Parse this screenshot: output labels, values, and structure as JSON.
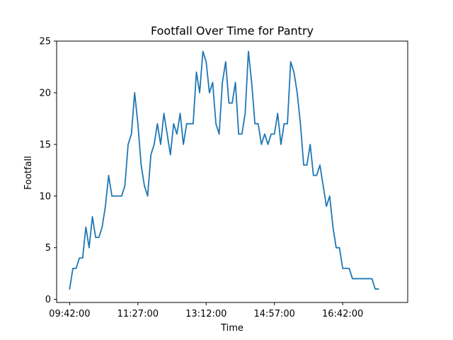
{
  "chart_data": {
    "type": "line",
    "title": "Footfall Over Time for Pantry",
    "xlabel": "Time",
    "ylabel": "Footfall",
    "x_start": "09:42:00",
    "x_step_minutes": 5,
    "xlim": [
      -4,
      104
    ],
    "ylim": [
      -0.3,
      25
    ],
    "y_ticks": [
      0,
      5,
      10,
      15,
      20,
      25
    ],
    "x_ticks": [
      {
        "label": "09:42:00",
        "x": 0
      },
      {
        "label": "11:27:00",
        "x": 21
      },
      {
        "label": "13:12:00",
        "x": 42
      },
      {
        "label": "14:57:00",
        "x": 63
      },
      {
        "label": "16:42:00",
        "x": 84
      }
    ],
    "grid": false,
    "color": "#1f77b4",
    "series": [
      {
        "values": [
          1,
          3,
          3,
          4,
          4,
          7,
          5,
          8,
          6,
          6,
          7,
          9,
          12,
          10,
          10,
          10,
          10,
          11,
          15,
          16,
          20,
          17,
          13,
          11,
          10,
          14,
          15,
          17,
          15,
          18,
          16,
          14,
          17,
          16,
          18,
          15,
          17,
          17,
          17,
          22,
          20,
          24,
          23,
          20,
          21,
          17,
          16,
          21,
          23,
          19,
          19,
          21,
          16,
          16,
          18,
          24,
          21,
          17,
          17,
          15,
          16,
          15,
          16,
          16,
          18,
          15,
          17,
          17,
          23,
          22,
          20,
          17,
          13,
          13,
          15,
          12,
          12,
          13,
          11,
          9,
          10,
          7,
          5,
          5,
          3,
          3,
          3,
          2,
          2,
          2,
          2,
          2,
          2,
          2,
          1,
          1
        ]
      }
    ]
  }
}
